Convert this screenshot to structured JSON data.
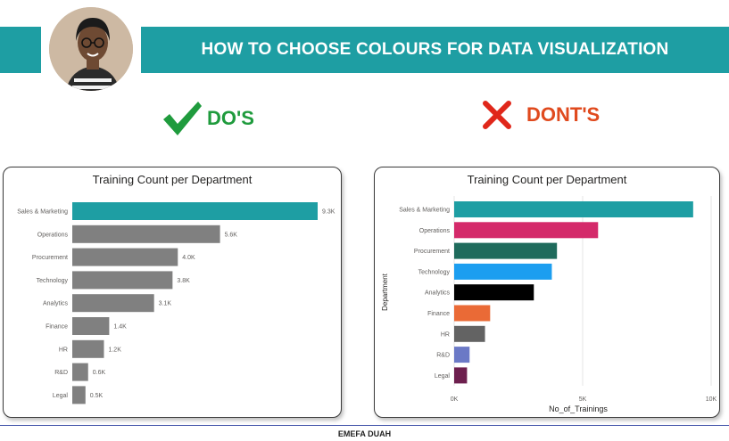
{
  "header": {
    "title": "HOW TO CHOOSE COLOURS FOR DATA VISUALIZATION",
    "banner_color": "#1e9ea3"
  },
  "avatar": {
    "icon": "person-portrait-icon"
  },
  "dos": {
    "label": "DO'S",
    "icon": "checkmark-icon",
    "color": "#1f9b3d"
  },
  "donts": {
    "label": "DONT'S",
    "icon": "cross-icon",
    "color": "#e04a1e"
  },
  "footer": {
    "author": "EMEFA DUAH"
  },
  "chart_data": [
    {
      "type": "bar",
      "orientation": "horizontal",
      "title": "Training Count per Department",
      "categories": [
        "Sales & Marketing",
        "Operations",
        "Procurement",
        "Technology",
        "Analytics",
        "Finance",
        "HR",
        "R&D",
        "Legal"
      ],
      "values": [
        9300,
        5600,
        4000,
        3800,
        3100,
        1400,
        1200,
        600,
        500
      ],
      "data_labels": [
        "9.3K",
        "5.6K",
        "4.0K",
        "3.8K",
        "3.1K",
        "1.4K",
        "1.2K",
        "0.6K",
        "0.5K"
      ],
      "colors": [
        "#1e9ea3",
        "#808080",
        "#808080",
        "#808080",
        "#808080",
        "#808080",
        "#808080",
        "#808080",
        "#808080"
      ],
      "xlim": [
        0,
        9300
      ],
      "grid": false
    },
    {
      "type": "bar",
      "orientation": "horizontal",
      "title": "Training Count per Department",
      "categories": [
        "Sales & Marketing",
        "Operations",
        "Procurement",
        "Technology",
        "Analytics",
        "Finance",
        "HR",
        "R&D",
        "Legal"
      ],
      "values": [
        9300,
        5600,
        4000,
        3800,
        3100,
        1400,
        1200,
        600,
        500
      ],
      "colors": [
        "#1e9ea3",
        "#d42a6a",
        "#1f6b5c",
        "#1c9ef0",
        "#000000",
        "#ea6a36",
        "#636363",
        "#6b79c6",
        "#6d1f4e"
      ],
      "xlabel": "No_of_Trainings",
      "ylabel": "Department",
      "xticks": [
        "0K",
        "5K",
        "10K"
      ],
      "xlim": [
        0,
        10000
      ],
      "grid": true
    }
  ]
}
